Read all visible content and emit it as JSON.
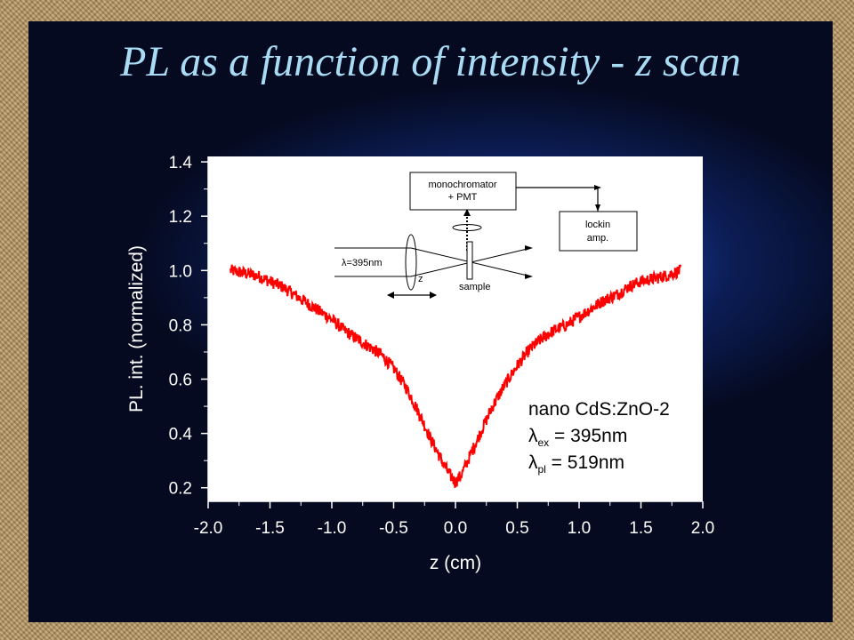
{
  "slide": {
    "title": "PL as a function of intensity - z scan"
  },
  "chart_data": {
    "type": "line",
    "xlabel": "z (cm)",
    "ylabel": "PL. int. (normalized)",
    "xlim": [
      -2.0,
      2.0
    ],
    "ylim": [
      0.15,
      1.42
    ],
    "x_ticks": [
      "-2.0",
      "-1.5",
      "-1.0",
      "-0.5",
      "0.0",
      "0.5",
      "1.0",
      "1.5",
      "2.0"
    ],
    "y_ticks": [
      "0.2",
      "0.4",
      "0.6",
      "0.8",
      "1.0",
      "1.2",
      "1.4"
    ],
    "grid": false,
    "series": [
      {
        "color": "#ff0000",
        "x": [
          -1.82,
          -1.7,
          -1.6,
          -1.5,
          -1.4,
          -1.3,
          -1.2,
          -1.1,
          -1.0,
          -0.9,
          -0.8,
          -0.7,
          -0.6,
          -0.5,
          -0.4,
          -0.3,
          -0.2,
          -0.1,
          -0.05,
          0.0,
          0.05,
          0.1,
          0.2,
          0.3,
          0.4,
          0.5,
          0.6,
          0.7,
          0.8,
          0.9,
          1.0,
          1.1,
          1.2,
          1.3,
          1.4,
          1.5,
          1.6,
          1.7,
          1.82
        ],
        "y": [
          1.0,
          0.99,
          0.98,
          0.96,
          0.94,
          0.91,
          0.88,
          0.85,
          0.82,
          0.78,
          0.75,
          0.72,
          0.69,
          0.64,
          0.57,
          0.48,
          0.38,
          0.29,
          0.25,
          0.22,
          0.25,
          0.3,
          0.4,
          0.5,
          0.58,
          0.65,
          0.71,
          0.75,
          0.78,
          0.8,
          0.83,
          0.86,
          0.89,
          0.91,
          0.94,
          0.96,
          0.97,
          0.98,
          1.0
        ]
      }
    ],
    "legend": {
      "placement": "bottom-right",
      "sample": "nano CdS:ZnO-2",
      "lambda_symbol": "λ",
      "ex_subscript": "ex",
      "ex_value": " = 395nm",
      "pl_subscript": "pl",
      "pl_value": " = 519nm"
    },
    "diagram": {
      "monochromator_line1": "monochromator",
      "monochromator_line2": "+ PMT",
      "lockin_line1": "lockin",
      "lockin_line2": "amp.",
      "laser_label": "λ=395nm",
      "z_label": "z",
      "sample_label": "sample"
    }
  }
}
